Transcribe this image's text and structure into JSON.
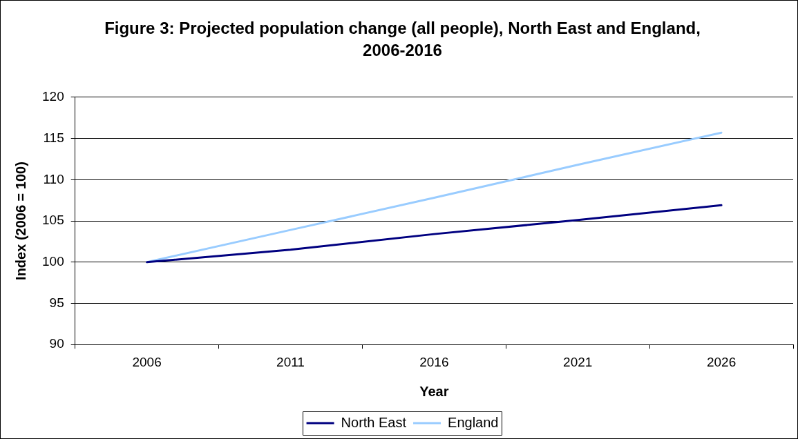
{
  "chart_data": {
    "type": "line",
    "title": "Figure 3: Projected population change (all people), North East and England, 2006-2016",
    "xlabel": "Year",
    "ylabel": "Index (2006 = 100)",
    "categories": [
      "2006",
      "2011",
      "2016",
      "2021",
      "2026"
    ],
    "series": [
      {
        "name": "North East",
        "color": "#000080",
        "values": [
          100,
          101.5,
          103.4,
          105.1,
          106.9
        ]
      },
      {
        "name": "England",
        "color": "#99ccff",
        "values": [
          100,
          103.9,
          107.8,
          111.8,
          115.7
        ]
      }
    ],
    "ylim": [
      90,
      120
    ],
    "yticks": [
      90,
      95,
      100,
      105,
      110,
      115,
      120
    ],
    "grid": "y",
    "legend": "bottom",
    "marker": "none"
  }
}
